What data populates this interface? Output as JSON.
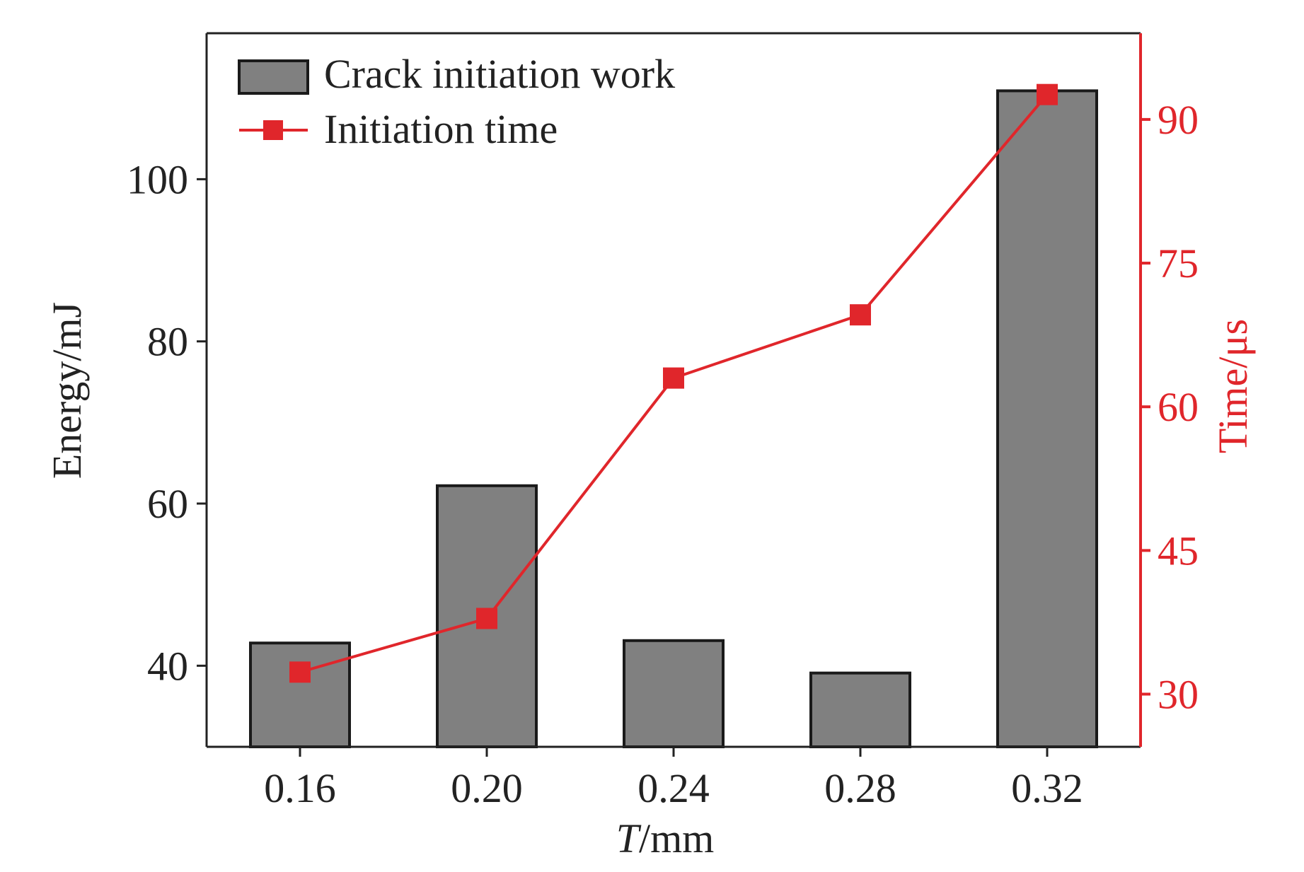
{
  "chart_data": {
    "type": "bar",
    "categories": [
      "0.16",
      "0.20",
      "0.24",
      "0.28",
      "0.32"
    ],
    "xlabel_italic": "T",
    "xlabel_rest": "/mm",
    "ylabel": "Energy/mJ",
    "y2label": "Time/μs",
    "ylim": [
      30,
      118
    ],
    "y2lim": [
      24.5,
      99
    ],
    "yticks": [
      40,
      60,
      80,
      100
    ],
    "y2ticks": [
      30,
      45,
      60,
      75,
      90
    ],
    "grid": false,
    "legend_position": "top-left",
    "series": [
      {
        "name": "Crack initiation work",
        "type": "bar",
        "axis": "left",
        "values": [
          42.8,
          62.2,
          43.1,
          39.1,
          110.9
        ]
      },
      {
        "name": "Initiation time",
        "type": "line",
        "axis": "right",
        "values": [
          32.3,
          37.9,
          63.0,
          69.6,
          92.6
        ]
      }
    ],
    "colors": {
      "bar_fill": "#808080",
      "bar_stroke": "#1a1a1a",
      "line": "#e0262b",
      "axis": "#222222",
      "axis_right": "#e0262b"
    }
  }
}
